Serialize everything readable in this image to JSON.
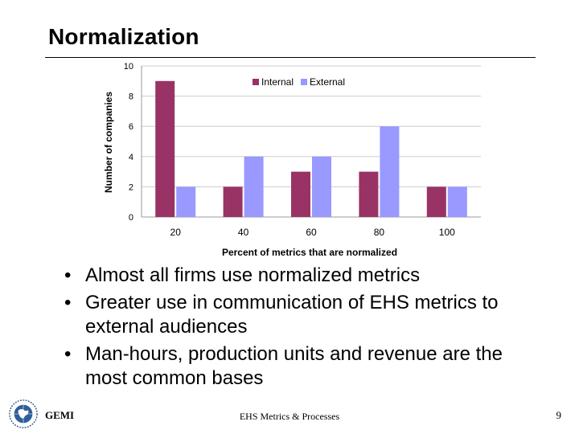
{
  "slide": {
    "title": "Normalization",
    "bullets": [
      "Almost all firms use normalized metrics",
      "Greater use in communication of EHS metrics to external audiences",
      "Man-hours, production units and revenue are the most common bases"
    ],
    "footer": {
      "brand": "GEMI",
      "center": "EHS Metrics & Processes",
      "page": "9"
    }
  },
  "chart_data": {
    "type": "bar",
    "categories": [
      "20",
      "40",
      "60",
      "80",
      "100"
    ],
    "series": [
      {
        "name": "Internal",
        "values": [
          9,
          2,
          3,
          3,
          2
        ],
        "color": "#993366"
      },
      {
        "name": "External",
        "values": [
          2,
          4,
          4,
          6,
          2
        ],
        "color": "#9999ff"
      }
    ],
    "xlabel": "Percent of metrics that are normalized",
    "ylabel": "Number of companies",
    "ylim": [
      0,
      10
    ],
    "yticks": [
      0,
      2,
      4,
      6,
      8,
      10
    ],
    "grid": true,
    "legend": "top"
  }
}
